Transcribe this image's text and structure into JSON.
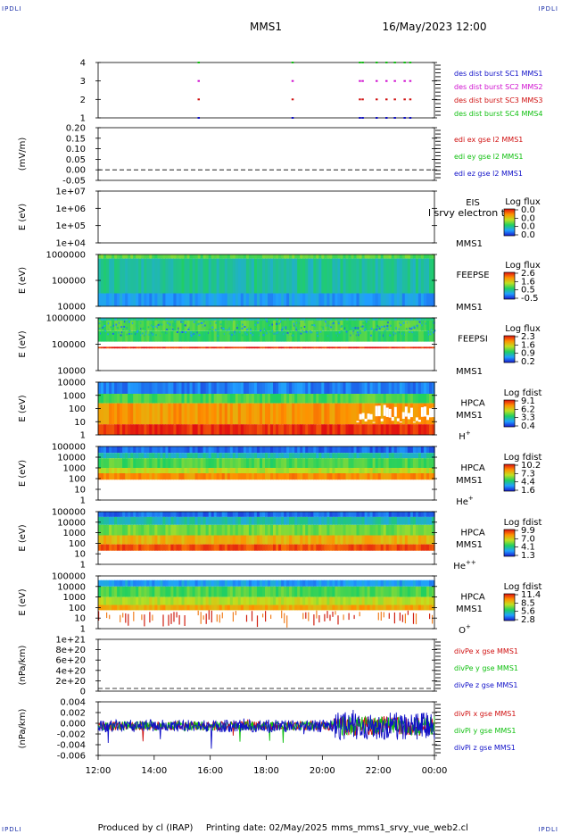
{
  "header": {
    "corner_label": "IPDLI",
    "spacecraft": "MMS1",
    "datetime": "16/May/2023 12:00"
  },
  "footer": {
    "produced_by": "Produced by cl (IRAP)",
    "printing_date": "Printing date: 02/May/2025",
    "file_name": "mms_mms1_srvy_vue_web2.cl"
  },
  "colors": {
    "blue": "#1010c8",
    "magenta": "#d010d0",
    "red": "#d01010",
    "green": "#10c010"
  },
  "chart_data": [
    {
      "id": "burst",
      "type": "scatter",
      "yticks": [
        "4",
        "3",
        "2",
        "1"
      ],
      "legend": [
        {
          "label": "des dist burst SC1 MMS1",
          "color": "#1010c8"
        },
        {
          "label": "des dist burst SC2 MMS2",
          "color": "#d010d0"
        },
        {
          "label": "des dist burst SC3 MMS3",
          "color": "#d01010"
        },
        {
          "label": "des dist burst SC4 MMS4",
          "color": "#10c010"
        }
      ],
      "burst_times_hours": [
        15.55,
        18.9,
        21.3,
        21.4,
        21.9,
        22.25,
        22.55,
        22.9,
        23.1
      ]
    },
    {
      "id": "edi",
      "type": "line",
      "ylabel": "(mV/m)",
      "yticks": [
        "0.20",
        "0.15",
        "0.10",
        "0.05",
        "0.00",
        "-0.05"
      ],
      "ylim": [
        -0.05,
        0.2
      ],
      "legend": [
        {
          "label": "edi ex gse l2 MMS1",
          "color": "#d01010"
        },
        {
          "label": "edi ey gse l2 MMS1",
          "color": "#10c010"
        },
        {
          "label": "edi ez gse l2 MMS1",
          "color": "#1010c8"
        }
      ],
      "zero_line": 0
    },
    {
      "id": "eis",
      "type": "heatmap",
      "ylabel": "E (eV)",
      "yticks": [
        "1e+07",
        "1e+06",
        "1e+05",
        "1e+04"
      ],
      "instrument": "EIS",
      "overlay_text": "l srvy electron to",
      "sc": "MMS1",
      "colorbar_title": "Log flux",
      "colorbar_ticks": [
        "0.0",
        "0.0",
        "0.0",
        "0.0"
      ]
    },
    {
      "id": "feepse",
      "type": "heatmap",
      "ylabel": "E (eV)",
      "yticks": [
        "1000000",
        "100000",
        "10000"
      ],
      "instrument": "FEEPSE",
      "sc": "MMS1",
      "colorbar_title": "Log flux",
      "colorbar_ticks": [
        "2.6",
        "1.6",
        "0.5",
        "-0.5"
      ]
    },
    {
      "id": "feepsi",
      "type": "heatmap",
      "ylabel": "E (eV)",
      "yticks": [
        "1000000",
        "100000",
        "10000"
      ],
      "instrument": "FEEPSI",
      "sc": "MMS1",
      "colorbar_title": "Log flux",
      "colorbar_ticks": [
        "2.3",
        "1.6",
        "0.9",
        "0.2"
      ]
    },
    {
      "id": "hpca_h",
      "type": "heatmap",
      "ylabel": "E (eV)",
      "yticks": [
        "10000",
        "1000",
        "100",
        "10",
        "1"
      ],
      "instrument": "HPCA",
      "sc": "MMS1",
      "species_base": "H",
      "species_sup": "+",
      "colorbar_title": "Log fdist",
      "colorbar_ticks": [
        "9.1",
        "6.2",
        "3.3",
        "0.4"
      ]
    },
    {
      "id": "hpca_he",
      "type": "heatmap",
      "ylabel": "E (eV)",
      "yticks": [
        "100000",
        "10000",
        "1000",
        "100",
        "10",
        "1"
      ],
      "instrument": "HPCA",
      "sc": "MMS1",
      "species_base": "He",
      "species_sup": "+",
      "colorbar_title": "Log fdist",
      "colorbar_ticks": [
        "10.2",
        "7.3",
        "4.4",
        "1.6"
      ]
    },
    {
      "id": "hpca_hepp",
      "type": "heatmap",
      "ylabel": "E (eV)",
      "yticks": [
        "100000",
        "10000",
        "1000",
        "100",
        "10",
        "1"
      ],
      "instrument": "HPCA",
      "sc": "MMS1",
      "species_base": "He",
      "species_sup": "++",
      "colorbar_title": "Log fdist",
      "colorbar_ticks": [
        "9.9",
        "7.0",
        "4.1",
        "1.3"
      ]
    },
    {
      "id": "hpca_o",
      "type": "heatmap",
      "ylabel": "E (eV)",
      "yticks": [
        "100000",
        "10000",
        "1000",
        "100",
        "10",
        "1"
      ],
      "instrument": "HPCA",
      "sc": "MMS1",
      "species_base": "O",
      "species_sup": "+",
      "colorbar_title": "Log fdist",
      "colorbar_ticks": [
        "11.4",
        "8.5",
        "5.6",
        "2.8"
      ]
    },
    {
      "id": "divpe",
      "type": "line",
      "ylabel": "(nPa/km)",
      "yticks": [
        "1e+21",
        "8e+20",
        "6e+20",
        "4e+20",
        "2e+20",
        "0"
      ],
      "ylim": [
        0,
        1e+21
      ],
      "legend": [
        {
          "label": "divPe x gse MMS1",
          "color": "#d01010"
        },
        {
          "label": "divPe y gse MMS1",
          "color": "#10c010"
        },
        {
          "label": "divPe z gse MMS1",
          "color": "#1010c8"
        }
      ],
      "zero_line": 0
    },
    {
      "id": "divpi",
      "type": "line",
      "ylabel": "(nPa/km)",
      "yticks": [
        "0.004",
        "0.002",
        "0.000",
        "-0.002",
        "-0.004",
        "-0.006"
      ],
      "ylim": [
        -0.007,
        0.005
      ],
      "legend": [
        {
          "label": "divPi x gse MMS1",
          "color": "#d01010"
        },
        {
          "label": "divPi y gse MMS1",
          "color": "#10c010"
        },
        {
          "label": "divPi z gse MMS1",
          "color": "#1010c8"
        }
      ]
    }
  ],
  "xaxis": {
    "ticks": [
      "12:00",
      "14:00",
      "16:00",
      "18:00",
      "20:00",
      "22:00",
      "00:00"
    ],
    "range_hours": [
      12,
      24
    ]
  }
}
